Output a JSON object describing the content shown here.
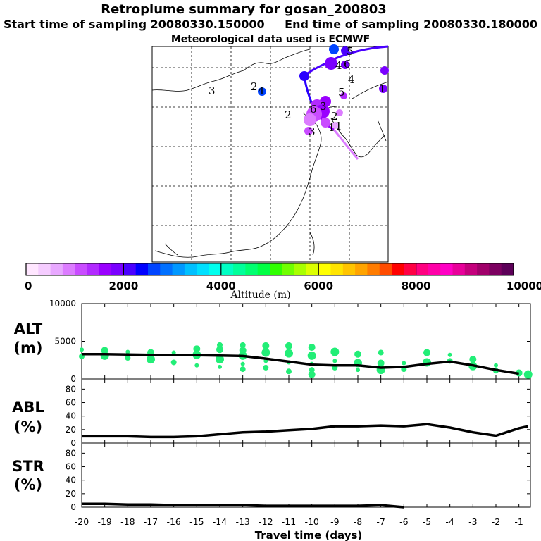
{
  "title": "Retroplume summary for gosan_200803",
  "start_time": "Start time of sampling 20080330.150000",
  "end_time": "End time of sampling 20080330.180000",
  "met_data": "Meteorological data used is ECMWF",
  "colorbar": {
    "label": "Altitude  (m)",
    "ticks": [
      "0",
      "2000",
      "4000",
      "6000",
      "8000",
      "10000"
    ],
    "colors": [
      "#ffe6ff",
      "#f5ccff",
      "#e8a8ff",
      "#dc7cff",
      "#c94cff",
      "#b22aff",
      "#9a00ff",
      "#7a00ff",
      "#4a00ff",
      "#0000ff",
      "#0044ff",
      "#0070ff",
      "#0098ff",
      "#00c0ff",
      "#00e0ff",
      "#00ffee",
      "#00ffc4",
      "#00ff9a",
      "#00ff70",
      "#00ff44",
      "#30ff00",
      "#70ff00",
      "#a8ff00",
      "#dcff00",
      "#ffff00",
      "#ffe400",
      "#ffc400",
      "#ffa400",
      "#ff7c00",
      "#ff4c00",
      "#ff0000",
      "#ff0044",
      "#ff0080",
      "#ff00a8",
      "#ff00c4",
      "#e8009a",
      "#c4007c",
      "#a0006a",
      "#7c0060",
      "#5c0058"
    ]
  },
  "map": {
    "trajectory_labels": [
      "1",
      "1",
      "1",
      "2",
      "2",
      "2",
      "3",
      "3",
      "3",
      "4",
      "4",
      "4",
      "5",
      "5",
      "6",
      "6"
    ]
  },
  "chart_data": [
    {
      "type": "scatter",
      "panel_label": "ALT\n(m)",
      "ylabel": "ALT",
      "yunit": "(m)",
      "ylim": [
        0,
        10000
      ],
      "yticks": [
        "0",
        "5000",
        "10000"
      ],
      "xlim": [
        -20,
        -0.5
      ],
      "x": [
        -20,
        -19,
        -18,
        -17,
        -16,
        -15,
        -14,
        -13,
        -12,
        -11,
        -10,
        -9,
        -8,
        -7,
        -6,
        -5,
        -4,
        -3,
        -2,
        -1
      ],
      "series": [
        {
          "name": "mean altitude",
          "values": [
            3300,
            3300,
            3250,
            3200,
            3150,
            3150,
            3100,
            3050,
            2700,
            2300,
            1900,
            1800,
            1800,
            1500,
            1600,
            2000,
            2300,
            1800,
            1200,
            700
          ]
        }
      ],
      "scatter_points": [
        {
          "x": -20,
          "y": 3900
        },
        {
          "x": -20,
          "y": 3000
        },
        {
          "x": -19,
          "y": 3800
        },
        {
          "x": -19,
          "y": 3100
        },
        {
          "x": -18,
          "y": 3600
        },
        {
          "x": -18,
          "y": 2800
        },
        {
          "x": -17,
          "y": 3500
        },
        {
          "x": -17,
          "y": 2600
        },
        {
          "x": -16,
          "y": 3500
        },
        {
          "x": -16,
          "y": 2200
        },
        {
          "x": -15,
          "y": 4000
        },
        {
          "x": -15,
          "y": 3200
        },
        {
          "x": -15,
          "y": 1800
        },
        {
          "x": -14,
          "y": 4500
        },
        {
          "x": -14,
          "y": 3900
        },
        {
          "x": -14,
          "y": 2600
        },
        {
          "x": -14,
          "y": 1600
        },
        {
          "x": -13,
          "y": 4500
        },
        {
          "x": -13,
          "y": 3800
        },
        {
          "x": -13,
          "y": 3100
        },
        {
          "x": -13,
          "y": 2000
        },
        {
          "x": -13,
          "y": 1300
        },
        {
          "x": -12,
          "y": 4400
        },
        {
          "x": -12,
          "y": 3500
        },
        {
          "x": -12,
          "y": 2400
        },
        {
          "x": -12,
          "y": 1500
        },
        {
          "x": -11,
          "y": 4400
        },
        {
          "x": -11,
          "y": 3400
        },
        {
          "x": -11,
          "y": 2200
        },
        {
          "x": -11,
          "y": 1000
        },
        {
          "x": -10,
          "y": 4200
        },
        {
          "x": -10,
          "y": 3100
        },
        {
          "x": -10,
          "y": 2000
        },
        {
          "x": -10,
          "y": 1200
        },
        {
          "x": -10,
          "y": 600
        },
        {
          "x": -9,
          "y": 3600
        },
        {
          "x": -9,
          "y": 2400
        },
        {
          "x": -9,
          "y": 1500
        },
        {
          "x": -8,
          "y": 3300
        },
        {
          "x": -8,
          "y": 2100
        },
        {
          "x": -8,
          "y": 1200
        },
        {
          "x": -7,
          "y": 3500
        },
        {
          "x": -7,
          "y": 2100
        },
        {
          "x": -7,
          "y": 1200
        },
        {
          "x": -6,
          "y": 2100
        },
        {
          "x": -6,
          "y": 1300
        },
        {
          "x": -5,
          "y": 3500
        },
        {
          "x": -5,
          "y": 2200
        },
        {
          "x": -4,
          "y": 3200
        },
        {
          "x": -4,
          "y": 2400
        },
        {
          "x": -3,
          "y": 2600
        },
        {
          "x": -3,
          "y": 1700
        },
        {
          "x": -2,
          "y": 1800
        },
        {
          "x": -2,
          "y": 1100
        },
        {
          "x": -1,
          "y": 800
        },
        {
          "x": -0.6,
          "y": 600
        }
      ]
    },
    {
      "type": "line",
      "panel_label": "ABL\n(%)",
      "ylabel": "ABL",
      "yunit": "(%)",
      "ylim": [
        0,
        95
      ],
      "yticks": [
        "0",
        "20",
        "40",
        "60",
        "80"
      ],
      "xlim": [
        -20,
        -0.5
      ],
      "x": [
        -20,
        -19,
        -18,
        -17,
        -16,
        -15,
        -14,
        -13,
        -12,
        -11,
        -10,
        -9,
        -8,
        -7,
        -6,
        -5,
        -4,
        -3,
        -2,
        -1,
        -0.6
      ],
      "series": [
        {
          "name": "ABL fraction",
          "values": [
            10,
            10,
            10,
            9,
            9,
            10,
            13,
            16,
            17,
            19,
            21,
            25,
            25,
            26,
            25,
            28,
            23,
            16,
            11,
            22,
            25
          ]
        }
      ]
    },
    {
      "type": "line",
      "panel_label": "STR\n(%)",
      "ylabel": "STR",
      "yunit": "(%)",
      "ylim": [
        0,
        95
      ],
      "yticks": [
        "0",
        "20",
        "40",
        "60",
        "80"
      ],
      "xlim": [
        -20,
        -0.5
      ],
      "x": [
        -20,
        -19,
        -18,
        -17,
        -16,
        -15,
        -14,
        -13,
        -12,
        -11,
        -10,
        -9,
        -8,
        -7,
        -6
      ],
      "series": [
        {
          "name": "STR fraction",
          "values": [
            5,
            5,
            4,
            4,
            3,
            3,
            3,
            3,
            2,
            2,
            2,
            2,
            2,
            3,
            0
          ]
        }
      ]
    }
  ],
  "x_axis": {
    "label": "Travel time (days)",
    "ticks": [
      "-20",
      "-19",
      "-18",
      "-17",
      "-16",
      "-15",
      "-14",
      "-13",
      "-12",
      "-11",
      "-10",
      "-9",
      "-8",
      "-7",
      "-6",
      "-5",
      "-4",
      "-3",
      "-2",
      "-1"
    ]
  }
}
